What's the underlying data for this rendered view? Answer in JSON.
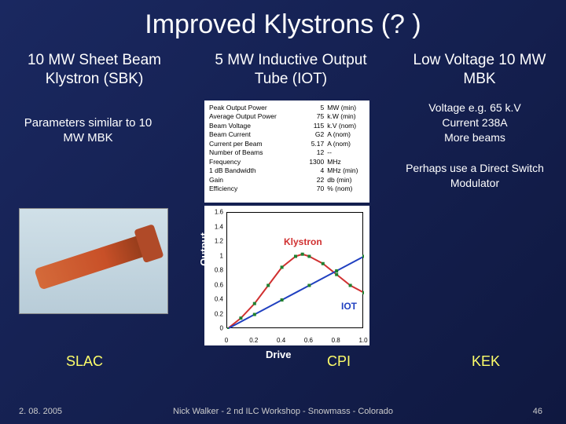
{
  "title": "Improved Klystrons (? )",
  "columns": {
    "c1": "10 MW Sheet Beam Klystron (SBK)",
    "c2": "5 MW Inductive Output Tube (IOT)",
    "c3": "Low Voltage 10 MW MBK"
  },
  "param_note": "Parameters similar to 10 MW MBK",
  "right_notes": {
    "line1": "Voltage e.g. 65 k.V",
    "line2": "Current 238A",
    "line3": "More beams",
    "line4": "Perhaps use a Direct Switch Modulator"
  },
  "param_table": {
    "rows": [
      {
        "label": "Peak Output Power",
        "val": "5",
        "unit": "MW (min)"
      },
      {
        "label": "Average Output Power",
        "val": "75",
        "unit": "k.W (min)"
      },
      {
        "label": "Beam Voltage",
        "val": "115",
        "unit": "k.V (nom)"
      },
      {
        "label": "Beam Current",
        "val": "G2",
        "unit": "A (nom)"
      },
      {
        "label": "Current per Beam",
        "val": "5.17",
        "unit": "A (nom)"
      },
      {
        "label": "Number of Beams",
        "val": "12",
        "unit": "--"
      },
      {
        "label": "Frequency",
        "val": "1300",
        "unit": "MHz"
      },
      {
        "label": "1 dB Bandwidth",
        "val": "4",
        "unit": "MHz (min)"
      },
      {
        "label": "Gain",
        "val": "22",
        "unit": "db (min)"
      },
      {
        "label": "Efficiency",
        "val": "70",
        "unit": "% (nom)"
      }
    ]
  },
  "chart": {
    "type": "line",
    "yticks": [
      "1.6",
      "1.4",
      "1.2",
      "1",
      "0.8",
      "0.6",
      "0.4",
      "0.2",
      "0"
    ],
    "xticks": [
      "0",
      "0.2",
      "0.4",
      "0.6",
      "0.8",
      "1.0"
    ],
    "ylim": [
      0,
      1.6
    ],
    "xlim": [
      0,
      1.0
    ],
    "series": {
      "klystron": {
        "label": "Klystron",
        "color": "#d03030",
        "points": [
          [
            0,
            0
          ],
          [
            0.1,
            0.15
          ],
          [
            0.2,
            0.35
          ],
          [
            0.3,
            0.6
          ],
          [
            0.4,
            0.85
          ],
          [
            0.5,
            1.0
          ],
          [
            0.55,
            1.03
          ],
          [
            0.6,
            1.0
          ],
          [
            0.7,
            0.9
          ],
          [
            0.8,
            0.75
          ],
          [
            0.9,
            0.6
          ],
          [
            1.0,
            0.5
          ]
        ]
      },
      "iot": {
        "label": "IOT",
        "color": "#2040c0",
        "points": [
          [
            0,
            0
          ],
          [
            0.2,
            0.2
          ],
          [
            0.4,
            0.4
          ],
          [
            0.6,
            0.6
          ],
          [
            0.8,
            0.8
          ],
          [
            1.0,
            1.0
          ]
        ]
      }
    },
    "axis_labels": {
      "x": "Drive",
      "y": "Output"
    },
    "markers_color": "#208030"
  },
  "bottom": {
    "slac": "SLAC",
    "cpi": "CPI",
    "kek": "KEK"
  },
  "footer": {
    "date": "2. 08. 2005",
    "center": "Nick Walker - 2 nd ILC Workshop - Snowmass - Colorado",
    "page": "46"
  },
  "colors": {
    "bg_top": "#1a2860",
    "bg_bot": "#0f1840",
    "yellow": "#ffff6a",
    "klystron": "#d03030",
    "iot": "#2040c0"
  }
}
